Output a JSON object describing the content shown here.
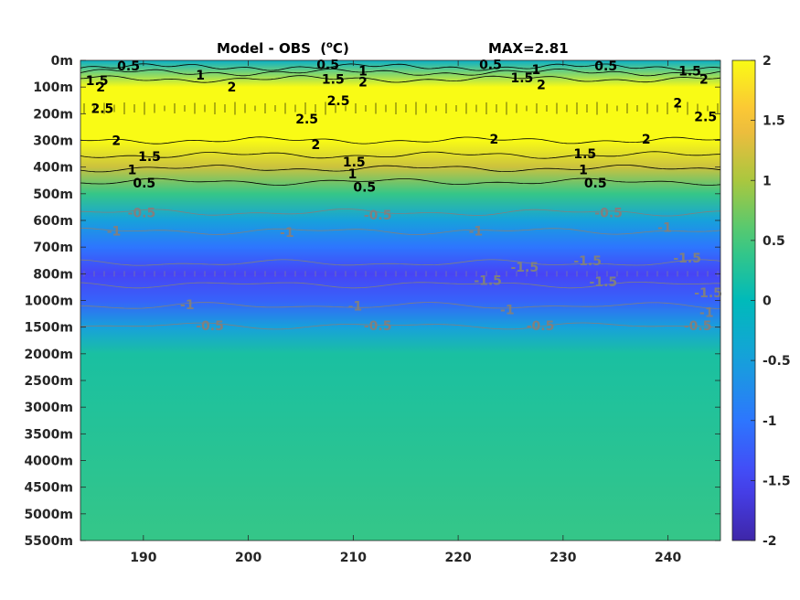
{
  "chart_data": {
    "type": "heatmap",
    "title": "Model - OBS",
    "title_unit_sup": "o",
    "title_unit_tail": "C",
    "title_unit_prefix": "(",
    "title_unit_suffix": ")",
    "subtitle": "MAX=2.81",
    "x_ticks": [
      190,
      200,
      210,
      220,
      230,
      240
    ],
    "xlim": [
      184,
      245
    ],
    "y_tick_labels": [
      "0m",
      "100m",
      "200m",
      "300m",
      "400m",
      "500m",
      "600m",
      "700m",
      "800m",
      "1000m",
      "1500m",
      "2000m",
      "2500m",
      "3000m",
      "3500m",
      "4000m",
      "4500m",
      "5000m",
      "5500m"
    ],
    "colorbar": {
      "range": [
        -2,
        2
      ],
      "ticks": [
        "2",
        "1.5",
        "1",
        "0.5",
        "0",
        "-0.5",
        "-1",
        "-1.5",
        "-2"
      ],
      "colormap": "parula"
    },
    "depth_profile": [
      {
        "depth": "0m",
        "value": -0.2
      },
      {
        "depth": "100m",
        "value": 2.0
      },
      {
        "depth": "200m",
        "value": 2.4
      },
      {
        "depth": "300m",
        "value": 2.0
      },
      {
        "depth": "400m",
        "value": 1.2
      },
      {
        "depth": "500m",
        "value": 0.4
      },
      {
        "depth": "600m",
        "value": -0.5
      },
      {
        "depth": "700m",
        "value": -1.0
      },
      {
        "depth": "800m",
        "value": -1.5
      },
      {
        "depth": "1000m",
        "value": -1.2
      },
      {
        "depth": "1500m",
        "value": -0.5
      },
      {
        "depth": "2000m",
        "value": 0.2
      },
      {
        "depth": "5500m",
        "value": 0.4
      }
    ],
    "contour_labels": [
      {
        "text": "0.5",
        "x": 187.5,
        "depth_index": 0.2,
        "level": "pos"
      },
      {
        "text": "1",
        "x": 195,
        "depth_index": 0.55,
        "level": "pos"
      },
      {
        "text": "1.5",
        "x": 184.5,
        "depth_index": 0.75,
        "level": "pos"
      },
      {
        "text": "2",
        "x": 185.5,
        "depth_index": 1.0,
        "level": "pos"
      },
      {
        "text": "2",
        "x": 198,
        "depth_index": 1.0,
        "level": "pos"
      },
      {
        "text": "2.5",
        "x": 185,
        "depth_index": 1.8,
        "level": "pos"
      },
      {
        "text": "0.5",
        "x": 206.5,
        "depth_index": 0.15,
        "level": "pos"
      },
      {
        "text": "1.5",
        "x": 207,
        "depth_index": 0.7,
        "level": "pos"
      },
      {
        "text": "1",
        "x": 210.5,
        "depth_index": 0.4,
        "level": "pos"
      },
      {
        "text": "2",
        "x": 210.5,
        "depth_index": 0.8,
        "level": "pos"
      },
      {
        "text": "2.5",
        "x": 207.5,
        "depth_index": 1.5,
        "level": "pos"
      },
      {
        "text": "2.5",
        "x": 204.5,
        "depth_index": 2.2,
        "level": "pos"
      },
      {
        "text": "0.5",
        "x": 222,
        "depth_index": 0.15,
        "level": "pos"
      },
      {
        "text": "1.5",
        "x": 225,
        "depth_index": 0.65,
        "level": "pos"
      },
      {
        "text": "1",
        "x": 227,
        "depth_index": 0.35,
        "level": "pos"
      },
      {
        "text": "2",
        "x": 227.5,
        "depth_index": 0.9,
        "level": "pos"
      },
      {
        "text": "0.5",
        "x": 233,
        "depth_index": 0.2,
        "level": "pos"
      },
      {
        "text": "1.5",
        "x": 241,
        "depth_index": 0.4,
        "level": "pos"
      },
      {
        "text": "2",
        "x": 243,
        "depth_index": 0.7,
        "level": "pos"
      },
      {
        "text": "2",
        "x": 240.5,
        "depth_index": 1.6,
        "level": "pos"
      },
      {
        "text": "2.5",
        "x": 242.5,
        "depth_index": 2.1,
        "level": "pos"
      },
      {
        "text": "2",
        "x": 187,
        "depth_index": 3.0,
        "level": "pos"
      },
      {
        "text": "2",
        "x": 206,
        "depth_index": 3.15,
        "level": "pos"
      },
      {
        "text": "2",
        "x": 223,
        "depth_index": 2.95,
        "level": "pos"
      },
      {
        "text": "2",
        "x": 237.5,
        "depth_index": 2.95,
        "level": "pos"
      },
      {
        "text": "1.5",
        "x": 189.5,
        "depth_index": 3.6,
        "level": "pos"
      },
      {
        "text": "1",
        "x": 188.5,
        "depth_index": 4.1,
        "level": "pos"
      },
      {
        "text": "0.5",
        "x": 189,
        "depth_index": 4.6,
        "level": "pos"
      },
      {
        "text": "1.5",
        "x": 209,
        "depth_index": 3.8,
        "level": "pos"
      },
      {
        "text": "1",
        "x": 209.5,
        "depth_index": 4.25,
        "level": "pos"
      },
      {
        "text": "0.5",
        "x": 210,
        "depth_index": 4.75,
        "level": "pos"
      },
      {
        "text": "1.5",
        "x": 231,
        "depth_index": 3.5,
        "level": "pos"
      },
      {
        "text": "1",
        "x": 231.5,
        "depth_index": 4.1,
        "level": "pos"
      },
      {
        "text": "0.5",
        "x": 232,
        "depth_index": 4.6,
        "level": "pos"
      },
      {
        "text": "-0.5",
        "x": 188.5,
        "depth_index": 5.7,
        "level": "neg"
      },
      {
        "text": "-1",
        "x": 186.5,
        "depth_index": 6.4,
        "level": "neg"
      },
      {
        "text": "-1",
        "x": 203,
        "depth_index": 6.45,
        "level": "neg"
      },
      {
        "text": "-0.5",
        "x": 211,
        "depth_index": 5.8,
        "level": "neg"
      },
      {
        "text": "-1",
        "x": 221,
        "depth_index": 6.4,
        "level": "neg"
      },
      {
        "text": "-0.5",
        "x": 233,
        "depth_index": 5.7,
        "level": "neg"
      },
      {
        "text": "-1",
        "x": 239,
        "depth_index": 6.25,
        "level": "neg"
      },
      {
        "text": "-1.5",
        "x": 225,
        "depth_index": 7.75,
        "level": "neg"
      },
      {
        "text": "-1.5",
        "x": 221.5,
        "depth_index": 8.25,
        "level": "neg"
      },
      {
        "text": "-1.5",
        "x": 231,
        "depth_index": 7.5,
        "level": "neg"
      },
      {
        "text": "-1.5",
        "x": 232.5,
        "depth_index": 8.3,
        "level": "neg"
      },
      {
        "text": "-1.5",
        "x": 240.5,
        "depth_index": 7.4,
        "level": "neg"
      },
      {
        "text": "-1.5",
        "x": 242.5,
        "depth_index": 8.7,
        "level": "neg"
      },
      {
        "text": "-1",
        "x": 193.5,
        "depth_index": 9.15,
        "level": "neg"
      },
      {
        "text": "-1",
        "x": 209.5,
        "depth_index": 9.2,
        "level": "neg"
      },
      {
        "text": "-1",
        "x": 224,
        "depth_index": 9.35,
        "level": "neg"
      },
      {
        "text": "-1",
        "x": 243,
        "depth_index": 9.45,
        "level": "neg"
      },
      {
        "text": "-0.5",
        "x": 195,
        "depth_index": 9.95,
        "level": "neg"
      },
      {
        "text": "-0.5",
        "x": 211,
        "depth_index": 9.95,
        "level": "neg"
      },
      {
        "text": "-0.5",
        "x": 226.5,
        "depth_index": 9.95,
        "level": "neg"
      },
      {
        "text": "-0.5",
        "x": 241.5,
        "depth_index": 9.95,
        "level": "neg"
      }
    ],
    "colors": {
      "positive_contour": "#000000",
      "negative_contour": "#808080"
    }
  }
}
